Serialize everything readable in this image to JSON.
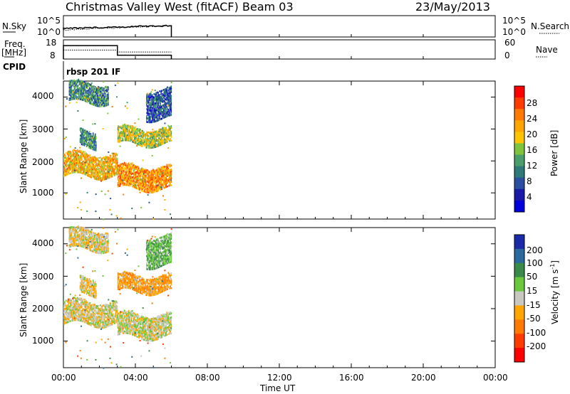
{
  "header": {
    "station": "Christmas Valley West (fitACF)",
    "beam": "Beam 03",
    "date": "23/May/2013"
  },
  "panels": {
    "nsky": {
      "label": "N.Sky",
      "ticks_left": [
        "10^5",
        "10^0"
      ],
      "ticks_right": [
        "10^5",
        "10^0"
      ],
      "right_label": "N.Search"
    },
    "freq": {
      "label_line1": "Freq.",
      "label_line2": "[MHz]",
      "ticks_left": [
        "18",
        "8"
      ],
      "ticks_right": [
        "60",
        "0"
      ],
      "right_label": "Nave"
    },
    "cpid": {
      "label": "CPID",
      "value": "rbsp 201 IF"
    }
  },
  "axes": {
    "ylabel": "Slant Range [km]",
    "yticks": [
      "4000",
      "3000",
      "2000",
      "1000"
    ],
    "xlabel": "Time UT",
    "xticks": [
      "00:00",
      "04:00",
      "08:00",
      "12:00",
      "16:00",
      "20:00",
      "00:00"
    ]
  },
  "colorbars": {
    "power": {
      "label": "Power [dB]",
      "ticks": [
        "28",
        "24",
        "20",
        "16",
        "12",
        "8",
        "4"
      ],
      "colors": [
        "#ff0000",
        "#ff3c00",
        "#ff7a00",
        "#ffa500",
        "#ffc400",
        "#7ec43c",
        "#4a9e6b",
        "#2d7a78",
        "#2a4fa0",
        "#1a1aa8",
        "#0000dd"
      ]
    },
    "velocity": {
      "label_main": "Velocity [m s",
      "label_sup": "-1",
      "label_end": "]",
      "ticks": [
        "200",
        "100",
        "50",
        "15",
        "-15",
        "-50",
        "-100",
        "-200"
      ],
      "colors": [
        "#1a2aa8",
        "#2a6aa0",
        "#3a8a4a",
        "#6ac83c",
        "#c8c8c0",
        "#ffa500",
        "#ff7a00",
        "#ff3c00",
        "#ff0000"
      ]
    }
  },
  "chart_data": {
    "type": "heatmap",
    "x_range_hours": [
      0,
      24
    ],
    "y_range_km": [
      180,
      4500
    ],
    "data_end_hour": 6,
    "frequency_mhz": [
      {
        "t_start": 0,
        "t_end": 3,
        "value": 15
      },
      {
        "t_start": 3,
        "t_end": 6,
        "value": 10
      }
    ],
    "nave": [
      {
        "t_start": 0,
        "t_end": 3,
        "value": 28
      },
      {
        "t_start": 3,
        "t_end": 6,
        "value": 22
      }
    ],
    "scatter_bands": [
      {
        "t0": 0.0,
        "t1": 3.0,
        "range_km": [
          1500,
          2200
        ],
        "power_db": 28,
        "velocity_ms": -5
      },
      {
        "t0": 0.9,
        "t1": 1.8,
        "range_km": [
          2400,
          2900
        ],
        "power_db": 18,
        "velocity_ms": -10
      },
      {
        "t0": 3.0,
        "t1": 6.0,
        "range_km": [
          1100,
          1800
        ],
        "power_db": 30,
        "velocity_ms": 0
      },
      {
        "t0": 3.0,
        "t1": 6.0,
        "range_km": [
          2500,
          3000
        ],
        "power_db": 24,
        "velocity_ms": -40
      },
      {
        "t0": 0.3,
        "t1": 2.5,
        "range_km": [
          3800,
          4400
        ],
        "power_db": 18,
        "velocity_ms": -10
      },
      {
        "t0": 4.6,
        "t1": 6.0,
        "range_km": [
          3300,
          4200
        ],
        "power_db": 14,
        "velocity_ms": 40
      }
    ]
  }
}
